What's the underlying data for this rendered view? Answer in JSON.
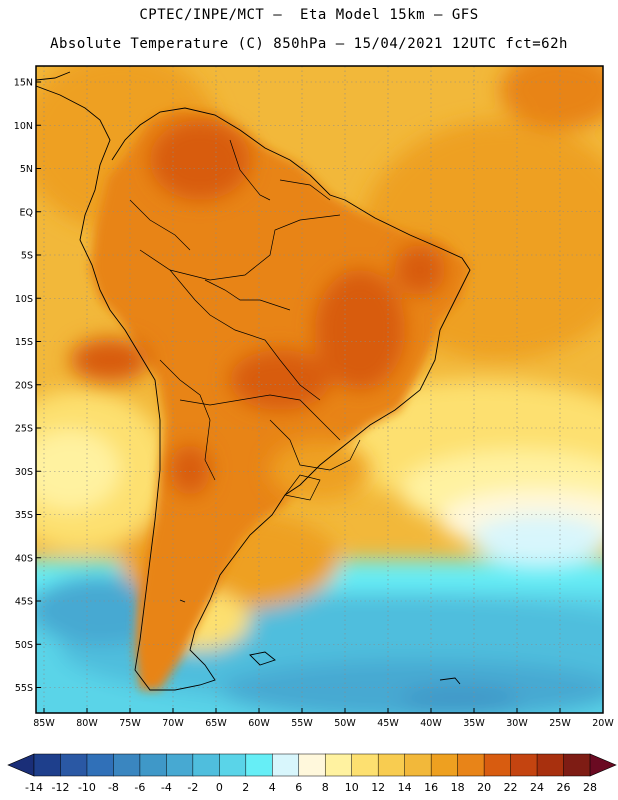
{
  "header": {
    "line1": "CPTEC/INPE/MCT –  Eta Model 15km – GFS",
    "line2": "Absolute Temperature (C) 850hPa – 15/04/2021 12UTC fct=62h"
  },
  "map": {
    "lat_ticks": [
      "15N",
      "10N",
      "5N",
      "EQ",
      "5S",
      "10S",
      "15S",
      "20S",
      "25S",
      "30S",
      "35S",
      "40S",
      "45S",
      "50S",
      "55S"
    ],
    "lon_ticks": [
      "85W",
      "80W",
      "75W",
      "70W",
      "65W",
      "60W",
      "55W",
      "50W",
      "45W",
      "40W",
      "35W",
      "30W",
      "25W",
      "20W"
    ],
    "lat_range": [
      -58,
      16
    ],
    "lon_range": [
      -86,
      -20
    ]
  },
  "colorbar": {
    "labels": [
      "-14",
      "-12",
      "-10",
      "-8",
      "-6",
      "-4",
      "-2",
      "0",
      "2",
      "4",
      "6",
      "8",
      "10",
      "12",
      "14",
      "16",
      "18",
      "20",
      "22",
      "24",
      "26",
      "28"
    ],
    "colors": [
      "#1e3f8c",
      "#2a58a4",
      "#3070b8",
      "#3a86c0",
      "#3f98c8",
      "#47a9d2",
      "#4fbedd",
      "#5ad4e8",
      "#66eef6",
      "#d8f6fc",
      "#fff8dc",
      "#fff2a0",
      "#fde070",
      "#f8cc50",
      "#f2b83a",
      "#eea020",
      "#e88418",
      "#d85c10",
      "#c44410",
      "#a8300e",
      "#7e1c14"
    ]
  },
  "colors": {
    "ocean_tropical": "#f2b83a",
    "land_warm": "#e88418",
    "land_hot": "#d85c10",
    "south_cold": "#47a9d2"
  }
}
